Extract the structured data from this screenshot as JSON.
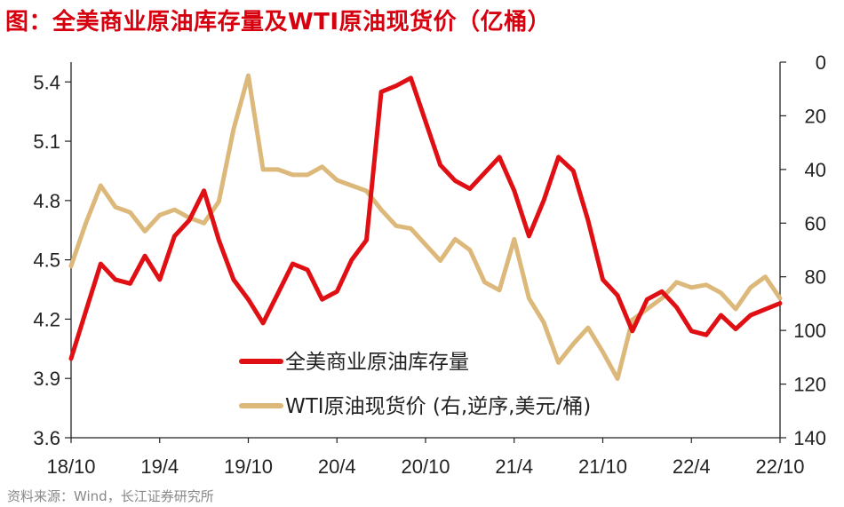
{
  "title": "图：全美商业原油库存量及WTI原油现货价（亿桶）",
  "source": "资料来源：Wind，长江证券研究所",
  "colors": {
    "inventory": "#e00f14",
    "wti": "#dcb97a",
    "title": "#d7000f",
    "axis": "#222222"
  },
  "chart_data": {
    "type": "line",
    "title": "图：全美商业原油库存量及WTI原油现货价（亿桶）",
    "x_ticks": [
      "18/10",
      "19/4",
      "19/10",
      "20/4",
      "20/10",
      "21/4",
      "21/10",
      "22/4",
      "22/10"
    ],
    "y_left": {
      "ticks": [
        "5.4",
        "5.1",
        "4.8",
        "4.5",
        "4.2",
        "3.9",
        "3.6"
      ],
      "ylim": [
        3.6,
        5.5
      ]
    },
    "y_right": {
      "ticks": [
        "0",
        "20",
        "40",
        "60",
        "80",
        "100",
        "120",
        "140"
      ],
      "ylim": [
        0,
        140
      ],
      "inverted": true
    },
    "grid": false,
    "legend_position": "bottom-center",
    "series": [
      {
        "name": "全美商业原油库存量",
        "axis": "left",
        "color": "#e00f14",
        "x": [
          0,
          1,
          2,
          3,
          4,
          5,
          6,
          7,
          8,
          9,
          10,
          11,
          12,
          13,
          14,
          15,
          16,
          17,
          18,
          19,
          20,
          21,
          22,
          23,
          24,
          25,
          26,
          27,
          28,
          29,
          30,
          31,
          32,
          33,
          34,
          35,
          36,
          37,
          38,
          39,
          40,
          41,
          42,
          43,
          44,
          45,
          46,
          47,
          48
        ],
        "values": [
          4.0,
          4.24,
          4.48,
          4.4,
          4.38,
          4.52,
          4.4,
          4.62,
          4.7,
          4.85,
          4.6,
          4.4,
          4.3,
          4.18,
          4.33,
          4.48,
          4.45,
          4.3,
          4.34,
          4.5,
          4.6,
          5.35,
          5.38,
          5.42,
          5.2,
          4.98,
          4.9,
          4.86,
          4.94,
          5.02,
          4.85,
          4.62,
          4.8,
          5.02,
          4.95,
          4.7,
          4.4,
          4.32,
          4.14,
          4.3,
          4.34,
          4.26,
          4.14,
          4.12,
          4.22,
          4.15,
          4.22,
          4.25,
          4.28
        ]
      },
      {
        "name": "WTI原油现货价 (右,逆序,美元/桶)",
        "axis": "right",
        "color": "#dcb97a",
        "x": [
          0,
          1,
          2,
          3,
          4,
          5,
          6,
          7,
          8,
          9,
          10,
          11,
          12,
          13,
          14,
          15,
          16,
          17,
          18,
          19,
          20,
          21,
          22,
          23,
          24,
          25,
          26,
          27,
          28,
          29,
          30,
          31,
          32,
          33,
          34,
          35,
          36,
          37,
          38,
          39,
          40,
          41,
          42,
          43,
          44,
          45,
          46,
          47,
          48
        ],
        "values": [
          76,
          60,
          46,
          54,
          56,
          63,
          57,
          55,
          58,
          60,
          52,
          25,
          5,
          40,
          40,
          42,
          42,
          39,
          44,
          46,
          48,
          55,
          61,
          62,
          68,
          74,
          66,
          70,
          82,
          85,
          66,
          88,
          97,
          112,
          105,
          99,
          108,
          118,
          96,
          92,
          88,
          82,
          84,
          83,
          86,
          92,
          84,
          80,
          88
        ]
      }
    ]
  }
}
